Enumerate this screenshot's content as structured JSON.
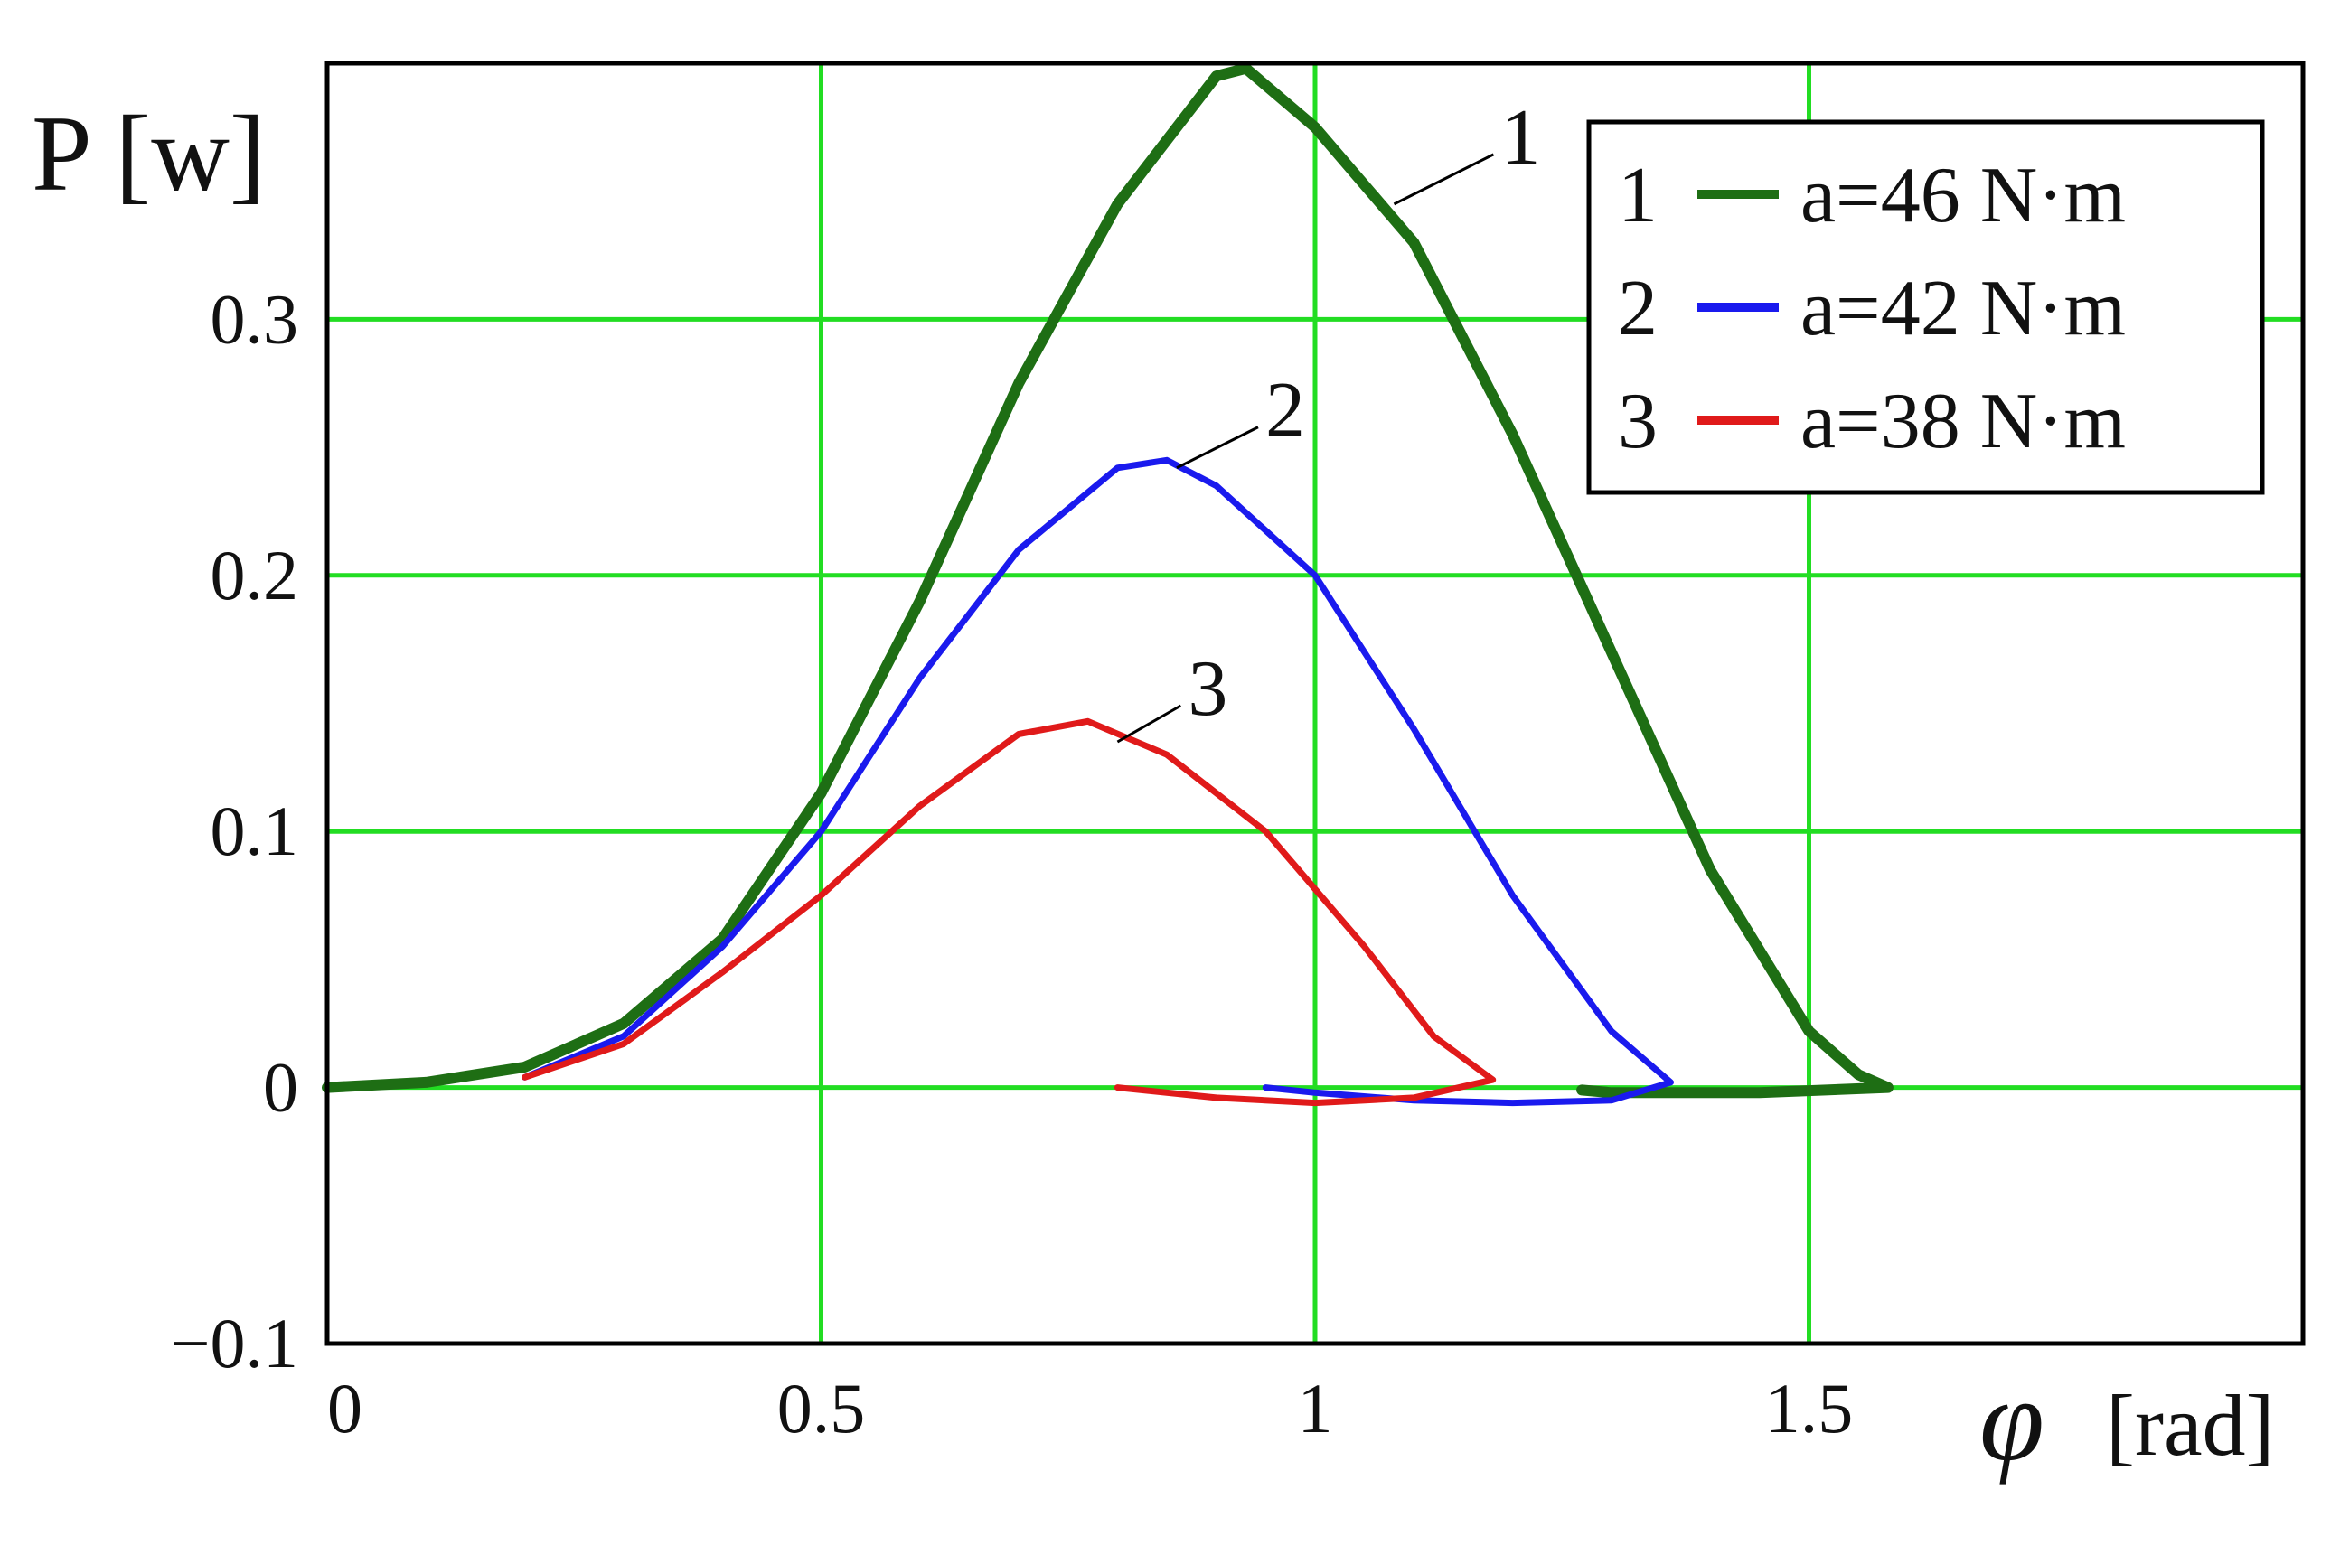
{
  "chart_data": {
    "type": "line",
    "ylabel": "P [w]",
    "xlabel_symbol": "φ",
    "xlabel_unit": "[rad]",
    "xlim": [
      0,
      2.0
    ],
    "ylim": [
      -0.1,
      0.4
    ],
    "x_ticks": [
      {
        "value": 0,
        "label": "0"
      },
      {
        "value": 0.5,
        "label": "0.5"
      },
      {
        "value": 1,
        "label": "1"
      },
      {
        "value": 1.5,
        "label": "1.5"
      }
    ],
    "y_ticks": [
      {
        "value": -0.1,
        "label": "−0.1"
      },
      {
        "value": 0,
        "label": "0"
      },
      {
        "value": 0.1,
        "label": "0.1"
      },
      {
        "value": 0.2,
        "label": "0.2"
      },
      {
        "value": 0.3,
        "label": "0.3"
      }
    ],
    "grid": true,
    "grid_color": "#22dd22",
    "legend_position": "top-right",
    "series": [
      {
        "name": "a=46 N·m",
        "legend_number": "1",
        "curve_label": "1",
        "color": "#1e6e14",
        "points": [
          [
            0,
            0
          ],
          [
            0.1,
            0.002
          ],
          [
            0.2,
            0.008
          ],
          [
            0.3,
            0.025
          ],
          [
            0.4,
            0.058
          ],
          [
            0.5,
            0.115
          ],
          [
            0.6,
            0.19
          ],
          [
            0.7,
            0.275
          ],
          [
            0.8,
            0.345
          ],
          [
            0.9,
            0.395
          ],
          [
            0.93,
            0.398
          ],
          [
            1.0,
            0.375
          ],
          [
            1.1,
            0.33
          ],
          [
            1.2,
            0.255
          ],
          [
            1.3,
            0.17
          ],
          [
            1.4,
            0.085
          ],
          [
            1.5,
            0.022
          ],
          [
            1.55,
            0.005
          ],
          [
            1.58,
            0
          ],
          [
            1.45,
            -0.002
          ],
          [
            1.3,
            -0.002
          ],
          [
            1.27,
            -0.001
          ]
        ]
      },
      {
        "name": "a=42 N·m",
        "legend_number": "2",
        "curve_label": "2",
        "color": "#1a1aee",
        "points": [
          [
            0.2,
            0.004
          ],
          [
            0.3,
            0.02
          ],
          [
            0.4,
            0.055
          ],
          [
            0.5,
            0.1
          ],
          [
            0.6,
            0.16
          ],
          [
            0.7,
            0.21
          ],
          [
            0.8,
            0.242
          ],
          [
            0.85,
            0.245
          ],
          [
            0.9,
            0.235
          ],
          [
            1.0,
            0.2
          ],
          [
            1.1,
            0.14
          ],
          [
            1.2,
            0.075
          ],
          [
            1.3,
            0.022
          ],
          [
            1.36,
            0.002
          ],
          [
            1.3,
            -0.005
          ],
          [
            1.2,
            -0.006
          ],
          [
            1.1,
            -0.005
          ],
          [
            1.0,
            -0.002
          ],
          [
            0.95,
            0
          ]
        ]
      },
      {
        "name": "a=38 N·m",
        "legend_number": "3",
        "curve_label": "3",
        "color": "#e01a1a",
        "points": [
          [
            0.2,
            0.004
          ],
          [
            0.3,
            0.017
          ],
          [
            0.4,
            0.045
          ],
          [
            0.5,
            0.075
          ],
          [
            0.6,
            0.11
          ],
          [
            0.7,
            0.138
          ],
          [
            0.77,
            0.143
          ],
          [
            0.85,
            0.13
          ],
          [
            0.95,
            0.1
          ],
          [
            1.05,
            0.055
          ],
          [
            1.12,
            0.02
          ],
          [
            1.18,
            0.003
          ],
          [
            1.1,
            -0.004
          ],
          [
            1.0,
            -0.006
          ],
          [
            0.9,
            -0.004
          ],
          [
            0.85,
            -0.002
          ],
          [
            0.8,
            0
          ]
        ]
      }
    ]
  }
}
